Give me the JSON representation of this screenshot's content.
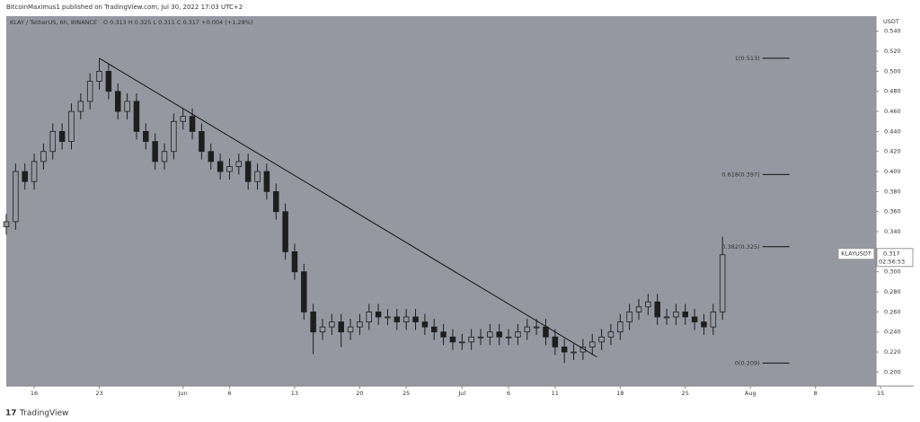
{
  "chart_data": {
    "type": "candlestick",
    "author_line": "BitcoinMaximus1 published on TradingView.com, Jul 30, 2022 17:03 UTC+2",
    "legend_line": "KLAY / TetherUS, 6h, BINANCE",
    "ohlc_line": "O 0.313  H 0.325  L 0.311  C 0.317  +0.004 (+1.28%)",
    "currency": "USDT",
    "footer": "TradingView",
    "color": "#1e1e1e",
    "x": [
      -3,
      -2,
      -1,
      0,
      1,
      2,
      3,
      4,
      5,
      6,
      7,
      8,
      9,
      10,
      11,
      12,
      13,
      14,
      15,
      16,
      17,
      18,
      19,
      20,
      21,
      22,
      23,
      24,
      25,
      26,
      27,
      28,
      29,
      30,
      31,
      32,
      33,
      34,
      35,
      36,
      37,
      38,
      39,
      40,
      41,
      42,
      43,
      44,
      45,
      46,
      47,
      48,
      49,
      50,
      51,
      52,
      53,
      54,
      55,
      56,
      57,
      58,
      59,
      60,
      61,
      62,
      63,
      64,
      65,
      66,
      67,
      68,
      69,
      70,
      71,
      72,
      73,
      74
    ],
    "open": [
      0.345,
      0.35,
      0.4,
      0.39,
      0.41,
      0.42,
      0.44,
      0.43,
      0.46,
      0.47,
      0.49,
      0.5,
      0.48,
      0.46,
      0.47,
      0.44,
      0.43,
      0.41,
      0.42,
      0.45,
      0.455,
      0.44,
      0.42,
      0.41,
      0.4,
      0.405,
      0.41,
      0.39,
      0.4,
      0.38,
      0.36,
      0.32,
      0.3,
      0.26,
      0.24,
      0.245,
      0.25,
      0.24,
      0.245,
      0.25,
      0.26,
      0.255,
      0.255,
      0.25,
      0.255,
      0.25,
      0.245,
      0.24,
      0.235,
      0.23,
      0.23,
      0.235,
      0.235,
      0.24,
      0.235,
      0.235,
      0.24,
      0.245,
      0.245,
      0.235,
      0.225,
      0.22,
      0.22,
      0.225,
      0.23,
      0.235,
      0.24,
      0.25,
      0.26,
      0.265,
      0.27,
      0.255,
      0.255,
      0.26,
      0.255,
      0.25,
      0.245,
      0.26
    ],
    "high": [
      0.358,
      0.408,
      0.408,
      0.418,
      0.428,
      0.448,
      0.448,
      0.468,
      0.478,
      0.498,
      0.513,
      0.508,
      0.488,
      0.478,
      0.478,
      0.448,
      0.438,
      0.428,
      0.458,
      0.463,
      0.463,
      0.448,
      0.428,
      0.418,
      0.413,
      0.418,
      0.418,
      0.408,
      0.408,
      0.388,
      0.368,
      0.328,
      0.308,
      0.268,
      0.253,
      0.258,
      0.258,
      0.253,
      0.258,
      0.268,
      0.268,
      0.263,
      0.263,
      0.263,
      0.263,
      0.258,
      0.253,
      0.248,
      0.243,
      0.238,
      0.243,
      0.243,
      0.248,
      0.248,
      0.243,
      0.248,
      0.253,
      0.253,
      0.253,
      0.243,
      0.233,
      0.228,
      0.233,
      0.238,
      0.243,
      0.248,
      0.258,
      0.268,
      0.273,
      0.278,
      0.278,
      0.263,
      0.268,
      0.268,
      0.263,
      0.258,
      0.268,
      0.335
    ],
    "low": [
      0.337,
      0.342,
      0.382,
      0.382,
      0.402,
      0.412,
      0.422,
      0.422,
      0.452,
      0.462,
      0.482,
      0.472,
      0.452,
      0.452,
      0.432,
      0.422,
      0.402,
      0.402,
      0.412,
      0.442,
      0.432,
      0.412,
      0.402,
      0.392,
      0.392,
      0.397,
      0.382,
      0.382,
      0.372,
      0.352,
      0.312,
      0.292,
      0.252,
      0.218,
      0.232,
      0.237,
      0.225,
      0.232,
      0.237,
      0.242,
      0.247,
      0.247,
      0.242,
      0.242,
      0.242,
      0.237,
      0.232,
      0.227,
      0.222,
      0.222,
      0.222,
      0.227,
      0.227,
      0.227,
      0.227,
      0.227,
      0.232,
      0.237,
      0.227,
      0.217,
      0.209,
      0.212,
      0.212,
      0.217,
      0.222,
      0.227,
      0.232,
      0.242,
      0.252,
      0.257,
      0.247,
      0.247,
      0.247,
      0.247,
      0.242,
      0.237,
      0.237,
      0.252
    ],
    "close": [
      0.35,
      0.4,
      0.39,
      0.41,
      0.42,
      0.44,
      0.43,
      0.46,
      0.47,
      0.49,
      0.5,
      0.48,
      0.46,
      0.47,
      0.44,
      0.43,
      0.41,
      0.42,
      0.45,
      0.455,
      0.44,
      0.42,
      0.41,
      0.4,
      0.405,
      0.41,
      0.39,
      0.4,
      0.38,
      0.36,
      0.32,
      0.3,
      0.26,
      0.24,
      0.245,
      0.25,
      0.24,
      0.245,
      0.25,
      0.26,
      0.255,
      0.255,
      0.25,
      0.255,
      0.25,
      0.245,
      0.24,
      0.235,
      0.23,
      0.23,
      0.235,
      0.235,
      0.24,
      0.235,
      0.235,
      0.24,
      0.245,
      0.245,
      0.235,
      0.225,
      0.22,
      0.22,
      0.225,
      0.23,
      0.235,
      0.24,
      0.25,
      0.26,
      0.265,
      0.27,
      0.255,
      0.255,
      0.26,
      0.255,
      0.25,
      0.245,
      0.26,
      0.317
    ],
    "trendline": {
      "x": [
        7,
        60.5
      ],
      "y": [
        0.513,
        0.215
      ]
    },
    "fib_levels": [
      {
        "label": "1(0.513)",
        "value": 0.513
      },
      {
        "label": "0.618(0.397)",
        "value": 0.397
      },
      {
        "label": "0.382(0.325)",
        "value": 0.325
      },
      {
        "label": "0(0.209)",
        "value": 0.209
      }
    ],
    "fib_x": [
      78.3,
      81.2
    ],
    "last_price": {
      "symbol": "KLAYUSDT",
      "value": 0.317,
      "countdown": "02:56:53"
    },
    "xlim": [
      -3,
      90.5
    ],
    "ylim": [
      0.186,
      0.555
    ],
    "xticks": [
      {
        "value": 0,
        "label": "16"
      },
      {
        "value": 7,
        "label": "23"
      },
      {
        "value": 16,
        "label": "Jun"
      },
      {
        "value": 21,
        "label": "6"
      },
      {
        "value": 28,
        "label": "13"
      },
      {
        "value": 35,
        "label": "20"
      },
      {
        "value": 40,
        "label": "25"
      },
      {
        "value": 46,
        "label": "Jul"
      },
      {
        "value": 51,
        "label": "6"
      },
      {
        "value": 56,
        "label": "11"
      },
      {
        "value": 63,
        "label": "18"
      },
      {
        "value": 70,
        "label": "25"
      },
      {
        "value": 77,
        "label": "Aug"
      },
      {
        "value": 84,
        "label": "8"
      },
      {
        "value": 91,
        "label": "15"
      }
    ],
    "yticks": [
      {
        "value": 0.2,
        "label": "0.200"
      },
      {
        "value": 0.22,
        "label": "0.220"
      },
      {
        "value": 0.24,
        "label": "0.240"
      },
      {
        "value": 0.26,
        "label": "0.260"
      },
      {
        "value": 0.28,
        "label": "0.280"
      },
      {
        "value": 0.3,
        "label": "0.300"
      },
      {
        "value": 0.32,
        "label": "0.320"
      },
      {
        "value": 0.34,
        "label": "0.340"
      },
      {
        "value": 0.36,
        "label": "0.360"
      },
      {
        "value": 0.38,
        "label": "0.380"
      },
      {
        "value": 0.4,
        "label": "0.400"
      },
      {
        "value": 0.42,
        "label": "0.420"
      },
      {
        "value": 0.44,
        "label": "0.440"
      },
      {
        "value": 0.46,
        "label": "0.460"
      },
      {
        "value": 0.48,
        "label": "0.480"
      },
      {
        "value": 0.5,
        "label": "0.500"
      },
      {
        "value": 0.52,
        "label": "0.520"
      },
      {
        "value": 0.54,
        "label": "0.540"
      }
    ]
  }
}
